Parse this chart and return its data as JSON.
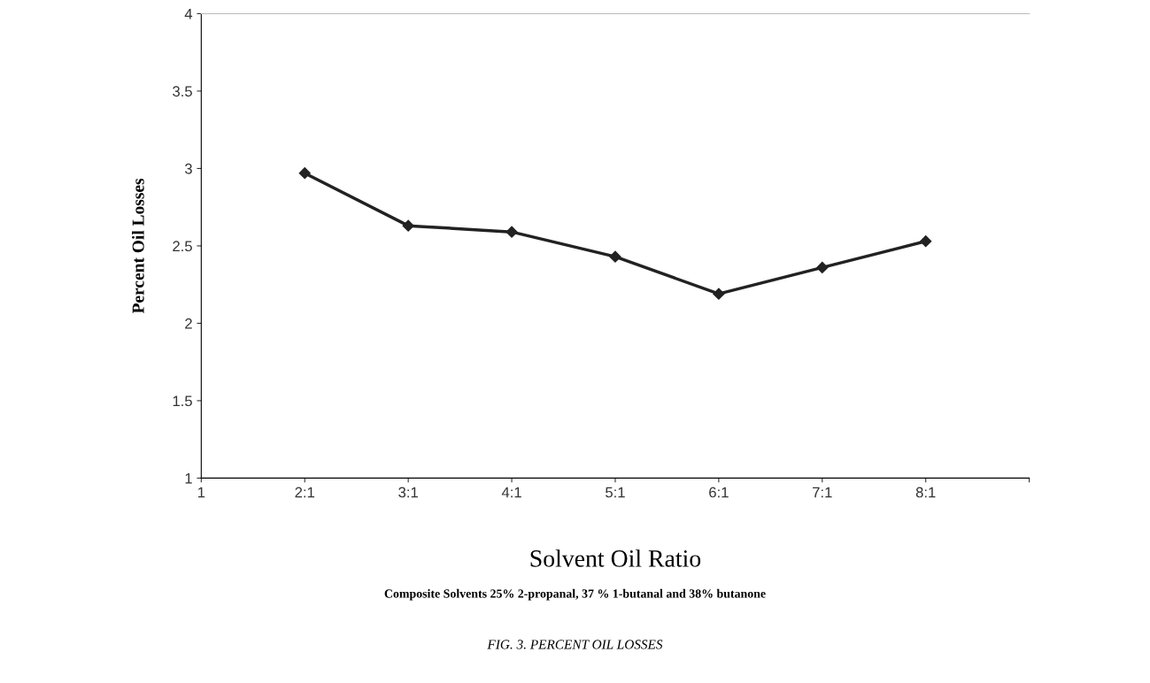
{
  "chart_data": {
    "type": "line",
    "xlabel": "Solvent Oil Ratio",
    "ylabel": "Percent Oil Losses",
    "categories": [
      "1",
      "2:1",
      "3:1",
      "4:1",
      "5:1",
      "6:1",
      "7:1",
      "8:1",
      null
    ],
    "series": [
      {
        "color": "#222222",
        "values": [
          null,
          2.97,
          2.63,
          2.59,
          2.43,
          2.19,
          2.36,
          2.53,
          null
        ]
      }
    ],
    "ylim": [
      1,
      4
    ],
    "yticks": [
      1,
      1.5,
      2,
      2.5,
      3,
      3.5,
      4
    ],
    "marker": "diamond",
    "line_style": "solid",
    "grid": false,
    "legend": false,
    "annotations": [
      "Composite Solvents 25% 2-propanal, 37 % 1-butanal and 38% butanone",
      "FIG. 3. PERCENT OIL LOSSES"
    ]
  }
}
